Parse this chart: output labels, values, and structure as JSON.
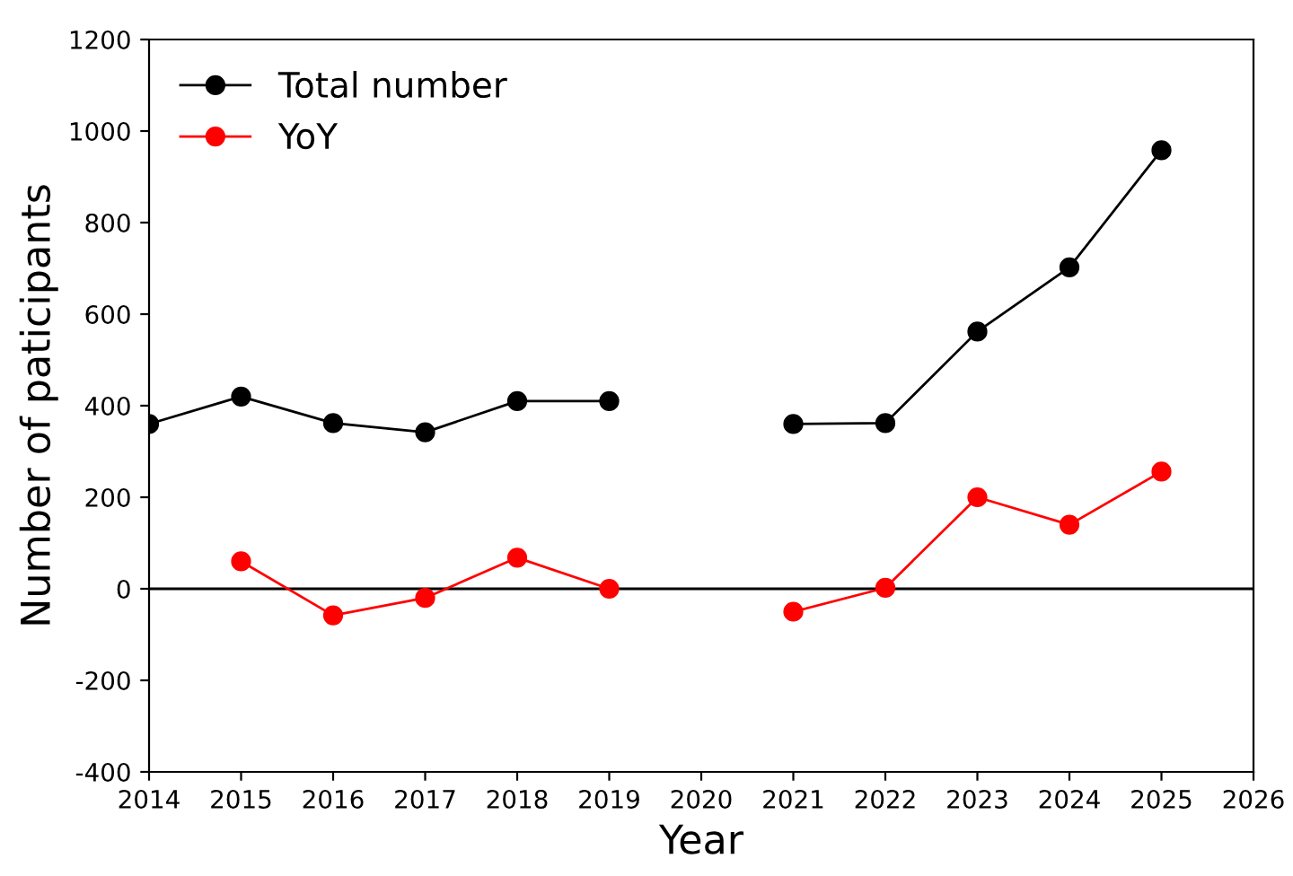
{
  "chart_data": {
    "type": "line",
    "xlabel": "Year",
    "ylabel": "Number of paticipants",
    "x": [
      2014,
      2015,
      2016,
      2017,
      2018,
      2019,
      2020,
      2021,
      2022,
      2023,
      2024,
      2025
    ],
    "series": [
      {
        "name": "Total number",
        "color": "#000000",
        "values": [
          360,
          420,
          362,
          342,
          410,
          410,
          null,
          360,
          362,
          562,
          702,
          958
        ]
      },
      {
        "name": "YoY",
        "color": "#ff0000",
        "values": [
          null,
          60,
          -58,
          -20,
          68,
          0,
          null,
          -50,
          2,
          200,
          140,
          256
        ]
      }
    ],
    "xlim": [
      2014,
      2026
    ],
    "xticks": [
      2014,
      2015,
      2016,
      2017,
      2018,
      2019,
      2020,
      2021,
      2022,
      2023,
      2024,
      2025,
      2026
    ],
    "ylim": [
      -400,
      1200
    ],
    "yticks": [
      -400,
      -200,
      0,
      200,
      400,
      600,
      800,
      1000,
      1200
    ],
    "ref_lines": [
      {
        "axis": "y",
        "value": 0,
        "color": "#000000",
        "line_style": "solid"
      }
    ],
    "grid": false,
    "legend": "top left",
    "marker": "circle",
    "line_style": "solid"
  }
}
